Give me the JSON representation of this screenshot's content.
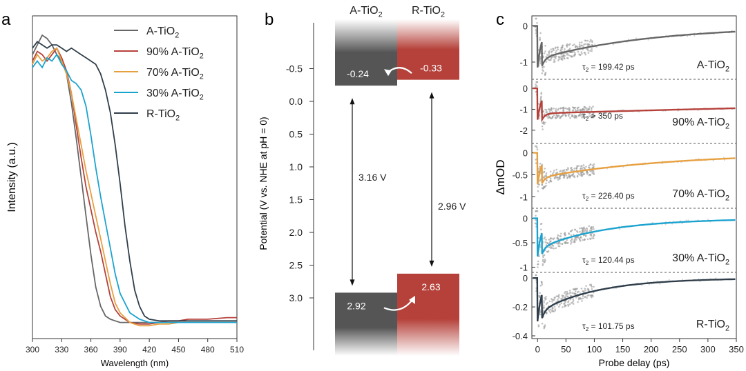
{
  "panel_labels": [
    "a",
    "b",
    "c"
  ],
  "colors": {
    "A-TiO2": "#666666",
    "90%": "#b5413a",
    "70%": "#e7a040",
    "30%": "#1ba3cf",
    "R-TiO2": "#2f3e4a"
  },
  "chart_data": [
    {
      "type": "line",
      "title": "",
      "xlabel": "Wavelength (nm)",
      "ylabel": "Intensity (a.u.)",
      "xlim": [
        300,
        510
      ],
      "ylim": [
        0,
        1
      ],
      "x_ticks": [
        300,
        330,
        360,
        390,
        420,
        450,
        480,
        510
      ],
      "legend": {
        "placement": "top-right",
        "entries": [
          {
            "label": "A-TiO",
            "sub": "2",
            "color": "#666666"
          },
          {
            "label": "90% A-TiO",
            "sub": "2",
            "color": "#b5413a"
          },
          {
            "label": "70% A-TiO",
            "sub": "2",
            "color": "#e7a040"
          },
          {
            "label": "30% A-TiO",
            "sub": "2",
            "color": "#1ba3cf"
          },
          {
            "label": "R-TiO",
            "sub": "2",
            "color": "#2f3e4a"
          }
        ]
      },
      "series": [
        {
          "name": "A-TiO2",
          "color": "#666666",
          "x": [
            300,
            305,
            310,
            315,
            320,
            325,
            330,
            335,
            340,
            345,
            350,
            355,
            360,
            365,
            370,
            375,
            380,
            385,
            390,
            400,
            410,
            420,
            430,
            440,
            450,
            460,
            480,
            500,
            510
          ],
          "y": [
            0.88,
            0.91,
            0.94,
            0.93,
            0.91,
            0.88,
            0.86,
            0.82,
            0.73,
            0.62,
            0.5,
            0.38,
            0.26,
            0.16,
            0.1,
            0.07,
            0.06,
            0.055,
            0.05,
            0.05,
            0.05,
            0.05,
            0.05,
            0.05,
            0.05,
            0.05,
            0.05,
            0.05,
            0.05
          ]
        },
        {
          "name": "90% A-TiO2",
          "color": "#b5413a",
          "x": [
            300,
            305,
            310,
            315,
            320,
            325,
            330,
            335,
            340,
            345,
            350,
            355,
            360,
            365,
            370,
            375,
            380,
            385,
            390,
            400,
            410,
            420,
            430,
            440,
            450,
            460,
            480,
            500,
            510
          ],
          "y": [
            0.86,
            0.89,
            0.88,
            0.86,
            0.88,
            0.9,
            0.87,
            0.83,
            0.76,
            0.66,
            0.56,
            0.47,
            0.4,
            0.33,
            0.27,
            0.2,
            0.13,
            0.09,
            0.07,
            0.05,
            0.045,
            0.045,
            0.05,
            0.055,
            0.055,
            0.06,
            0.06,
            0.065,
            0.065
          ]
        },
        {
          "name": "70% A-TiO2",
          "color": "#e7a040",
          "x": [
            300,
            305,
            310,
            315,
            320,
            325,
            330,
            335,
            340,
            345,
            350,
            355,
            360,
            365,
            370,
            375,
            380,
            385,
            390,
            400,
            410,
            420,
            430,
            440,
            450,
            460,
            480,
            500,
            510
          ],
          "y": [
            0.85,
            0.88,
            0.86,
            0.87,
            0.89,
            0.9,
            0.86,
            0.82,
            0.76,
            0.68,
            0.6,
            0.52,
            0.45,
            0.38,
            0.31,
            0.24,
            0.17,
            0.11,
            0.08,
            0.05,
            0.04,
            0.04,
            0.045,
            0.045,
            0.05,
            0.05,
            0.05,
            0.05,
            0.05
          ]
        },
        {
          "name": "30% A-TiO2",
          "color": "#1ba3cf",
          "x": [
            300,
            305,
            310,
            315,
            320,
            325,
            330,
            335,
            340,
            345,
            350,
            355,
            360,
            365,
            370,
            375,
            380,
            385,
            390,
            400,
            410,
            420,
            430,
            440,
            450,
            460,
            480,
            500,
            510
          ],
          "y": [
            0.84,
            0.86,
            0.84,
            0.87,
            0.86,
            0.88,
            0.85,
            0.83,
            0.8,
            0.79,
            0.77,
            0.72,
            0.63,
            0.53,
            0.44,
            0.36,
            0.28,
            0.2,
            0.14,
            0.08,
            0.06,
            0.05,
            0.05,
            0.05,
            0.05,
            0.05,
            0.05,
            0.05,
            0.05
          ]
        },
        {
          "name": "R-TiO2",
          "color": "#2f3e4a",
          "x": [
            300,
            305,
            310,
            315,
            320,
            325,
            330,
            335,
            340,
            345,
            350,
            355,
            360,
            365,
            370,
            375,
            380,
            385,
            390,
            395,
            400,
            405,
            410,
            415,
            420,
            430,
            440,
            460,
            480,
            500,
            510
          ],
          "y": [
            0.9,
            0.92,
            0.91,
            0.9,
            0.91,
            0.91,
            0.9,
            0.89,
            0.9,
            0.89,
            0.88,
            0.87,
            0.86,
            0.85,
            0.82,
            0.77,
            0.7,
            0.6,
            0.48,
            0.35,
            0.24,
            0.15,
            0.1,
            0.07,
            0.06,
            0.055,
            0.055,
            0.055,
            0.055,
            0.055,
            0.055
          ]
        }
      ]
    },
    {
      "type": "band-diagram",
      "title": "",
      "ylabel": "Potential (V vs. NHE at pH = 0)",
      "ylim": [
        -1.2,
        3.8
      ],
      "y_ticks": [
        "-0.5",
        "0.0",
        "0.5",
        "1.0",
        "1.5",
        "2.0",
        "2.5",
        "3.0"
      ],
      "y_tick_values": [
        -0.5,
        0.0,
        0.5,
        1.0,
        1.5,
        2.0,
        2.5,
        3.0
      ],
      "phases": [
        {
          "name": "A-TiO",
          "sub": "2",
          "color": "#555555",
          "cb": -0.24,
          "vb": 2.92,
          "cb_label": "-0.24",
          "vb_label": "2.92",
          "gap_label": "3.16 V"
        },
        {
          "name": "R-TiO",
          "sub": "2",
          "color": "#b5413a",
          "cb": -0.33,
          "vb": 2.63,
          "cb_label": "-0.33",
          "vb_label": "2.63",
          "gap_label": "2.96 V"
        }
      ]
    },
    {
      "type": "scatter+line",
      "title": "",
      "xlabel": "Probe delay (ps)",
      "ylabel": "ΔmOD",
      "xlim": [
        -10,
        350
      ],
      "x_ticks": [
        0,
        50,
        100,
        150,
        200,
        250,
        300,
        350
      ],
      "panels": [
        {
          "label": "A-TiO",
          "sub": "2",
          "color": "#666666",
          "tau_label": " = 199.42 ps",
          "ylim": [
            -1.4,
            0.2
          ],
          "y_ticks": [
            0,
            -1
          ],
          "y_tick_labels": [
            "0",
            "-1"
          ],
          "amp": -1.15,
          "tau": 199.42,
          "offset": 0,
          "dense_to": 100
        },
        {
          "label": "90% A-TiO",
          "sub": "2",
          "color": "#b5413a",
          "tau_label": " > 350 ps",
          "ylim": [
            -2.5,
            0.3
          ],
          "y_ticks": [
            0,
            -1,
            -2
          ],
          "y_tick_labels": [
            "0",
            "-1",
            "-2"
          ],
          "amp": -1.5,
          "tau": 1500,
          "offset": 0,
          "dense_to": 100
        },
        {
          "label": "70% A-TiO",
          "sub": "2",
          "color": "#e7a040",
          "tau_label": " = 226.40 ps",
          "ylim": [
            -1.2,
            0.15
          ],
          "y_ticks": [
            0,
            -0.5,
            -1
          ],
          "y_tick_labels": [
            "0",
            "-0.5",
            "-1"
          ],
          "amp": -0.72,
          "tau": 226.4,
          "offset": 0,
          "dense_to": 100
        },
        {
          "label": "30% A-TiO",
          "sub": "2",
          "color": "#1ba3cf",
          "tau_label": " = 120.44 ps",
          "ylim": [
            -1.05,
            0.15
          ],
          "y_ticks": [
            0,
            -0.5,
            -1
          ],
          "y_tick_labels": [
            "0",
            "-0.5",
            "-1"
          ],
          "amp": -0.78,
          "tau": 120.44,
          "offset": 0,
          "dense_to": 100
        },
        {
          "label": "R-TiO",
          "sub": "2",
          "color": "#2f3e4a",
          "tau_label": " = 101.75 ps",
          "ylim": [
            -0.4,
            0.02
          ],
          "y_ticks": [
            0,
            -0.2,
            -0.4
          ],
          "y_tick_labels": [
            "0",
            "-0.2",
            "-0.4"
          ],
          "amp": -0.3,
          "tau": 101.75,
          "offset": 0,
          "dense_to": 100
        }
      ]
    }
  ]
}
